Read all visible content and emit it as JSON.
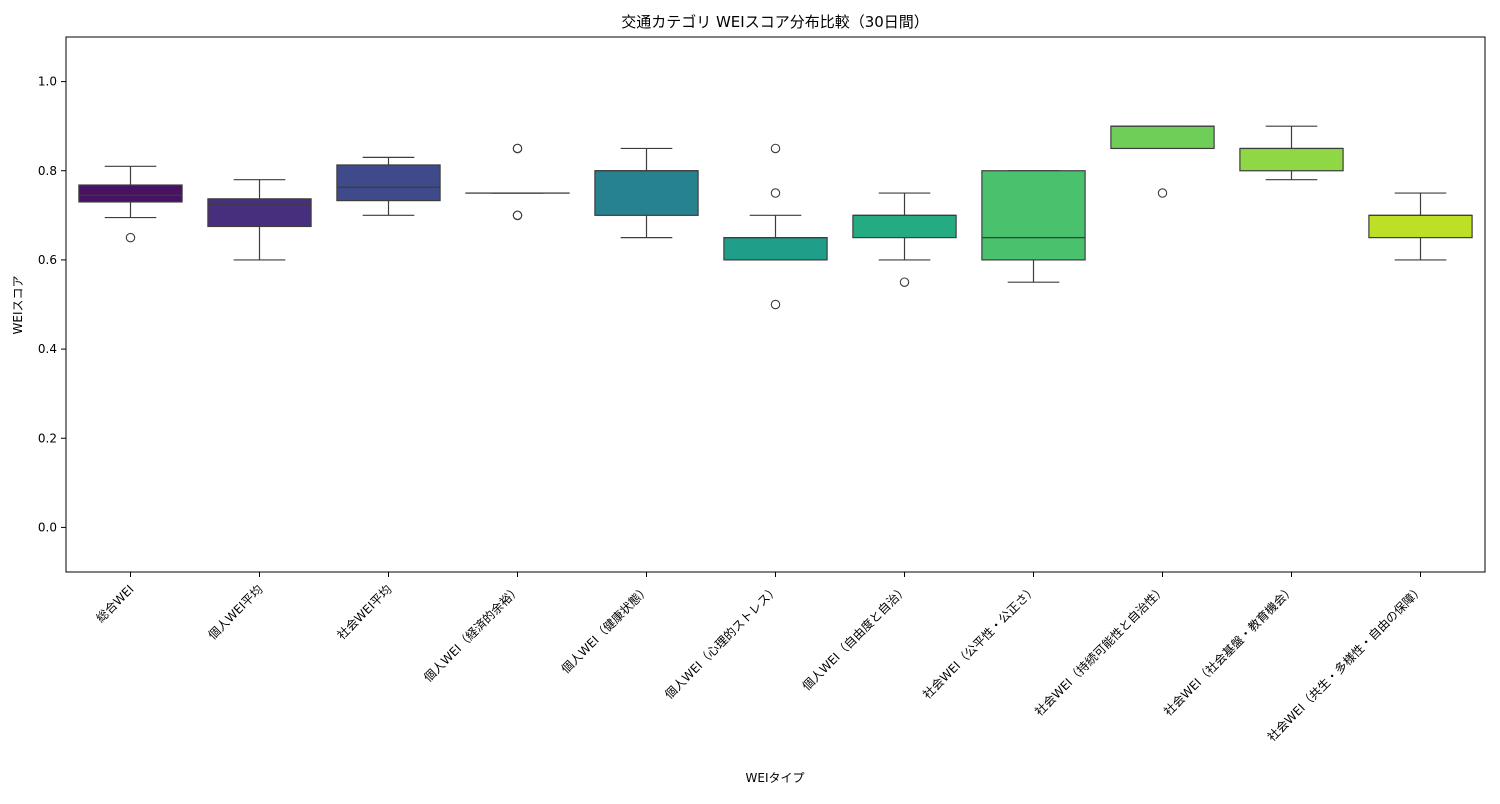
{
  "chart_data": {
    "type": "box",
    "title": "交通カテゴリ WEIスコア分布比較（30日間）",
    "xlabel": "WEIタイプ",
    "ylabel": "WEIスコア",
    "ylim": [
      -0.1,
      1.1
    ],
    "yticks": [
      0.0,
      0.2,
      0.4,
      0.6,
      0.8,
      1.0
    ],
    "ytick_labels": [
      "0.0",
      "0.2",
      "0.4",
      "0.6",
      "0.8",
      "1.0"
    ],
    "grid": false,
    "legend": "none",
    "categories": [
      "総合WEI",
      "個人WEI平均",
      "社会WEI平均",
      "個人WEI（経済的余裕）",
      "個人WEI（健康状態）",
      "個人WEI（心理的ストレス）",
      "個人WEI（自由度と自治）",
      "社会WEI（公平性・公正さ）",
      "社会WEI（持続可能性と自治性）",
      "社会WEI（社会基盤・教育機会）",
      "社会WEI（共生・多様性・自由の保障）"
    ],
    "boxes": [
      {
        "whislo": 0.695,
        "q1": 0.73,
        "med": 0.745,
        "q3": 0.768,
        "whishi": 0.81,
        "fliers": [
          0.65
        ],
        "color": "#471164"
      },
      {
        "whislo": 0.6,
        "q1": 0.675,
        "med": 0.725,
        "q3": 0.737,
        "whishi": 0.78,
        "fliers": [],
        "color": "#472f7d"
      },
      {
        "whislo": 0.7,
        "q1": 0.733,
        "med": 0.763,
        "q3": 0.813,
        "whishi": 0.83,
        "fliers": [],
        "color": "#3e4a89"
      },
      {
        "whislo": 0.75,
        "q1": 0.75,
        "med": 0.75,
        "q3": 0.75,
        "whishi": 0.75,
        "fliers": [
          0.7,
          0.7,
          0.85,
          0.85
        ],
        "color": "#31688e"
      },
      {
        "whislo": 0.65,
        "q1": 0.7,
        "med": 0.8,
        "q3": 0.8,
        "whishi": 0.85,
        "fliers": [],
        "color": "#26828e"
      },
      {
        "whislo": 0.6,
        "q1": 0.6,
        "med": 0.65,
        "q3": 0.65,
        "whishi": 0.7,
        "fliers": [
          0.5,
          0.75,
          0.85
        ],
        "color": "#1f9e89"
      },
      {
        "whislo": 0.6,
        "q1": 0.65,
        "med": 0.7,
        "q3": 0.7,
        "whishi": 0.75,
        "fliers": [
          0.55
        ],
        "color": "#25ab82"
      },
      {
        "whislo": 0.55,
        "q1": 0.6,
        "med": 0.65,
        "q3": 0.8,
        "whishi": 0.8,
        "fliers": [],
        "color": "#4ac16d"
      },
      {
        "whislo": 0.85,
        "q1": 0.85,
        "med": 0.9,
        "q3": 0.9,
        "whishi": 0.9,
        "fliers": [
          0.75
        ],
        "color": "#6ece58"
      },
      {
        "whislo": 0.78,
        "q1": 0.8,
        "med": 0.85,
        "q3": 0.85,
        "whishi": 0.9,
        "fliers": [],
        "color": "#8fd744"
      },
      {
        "whislo": 0.6,
        "q1": 0.65,
        "med": 0.7,
        "q3": 0.7,
        "whishi": 0.75,
        "fliers": [],
        "color": "#bddf26"
      }
    ]
  }
}
